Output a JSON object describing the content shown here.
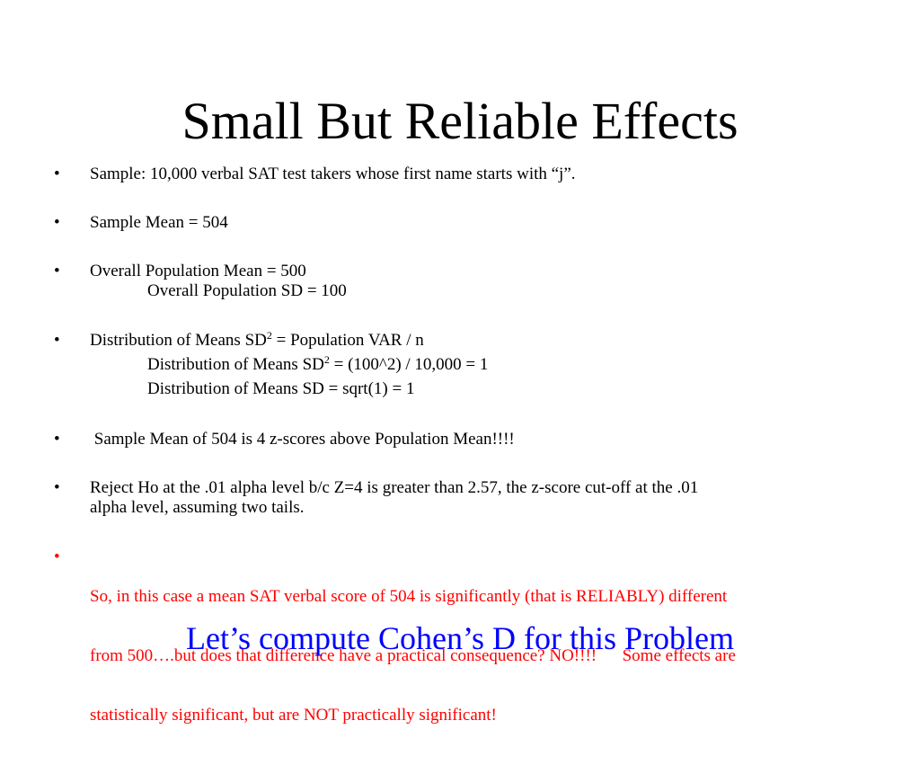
{
  "slide": {
    "title": "Small But Reliable Effects",
    "bullet_char": "•",
    "bullets": [
      {
        "text": "Sample: 10,000 verbal SAT test takers whose first name starts with “j”."
      },
      {
        "text": "Sample Mean = 504"
      },
      {
        "text": "Overall Population Mean = 500",
        "sub": "Overall Population SD = 100"
      },
      {
        "text_a": "Distribution of Means SD",
        "sup": "2",
        "text_b": " = Population VAR / n",
        "sub1_a": "Distribution of Means SD",
        "sub1_sup": "2",
        "sub1_b": " = (100^2) / 10,000 = 1",
        "sub2": "Distribution of Means SD = sqrt(1) = 1"
      },
      {
        "text": " Sample Mean of 504 is 4 z-scores above Population Mean!!!!"
      },
      {
        "line1": "Reject Ho at the .01 alpha level b/c Z=4 is greater than 2.57, the z-score cut-off at the .01",
        "line2": "alpha level, assuming two tails."
      },
      {
        "line1": "So, in this case a mean SAT verbal score of 504 is significantly (that is RELIABLY) different",
        "line2": "from 500….but does that difference have a practical consequence? NO!!!!      Some effects are",
        "line3": "statistically significant, but are NOT practically significant!",
        "color": "#ff0000"
      }
    ],
    "footer": "Let’s compute Cohen’s D for this Problem",
    "footer_color": "#0000ff"
  }
}
